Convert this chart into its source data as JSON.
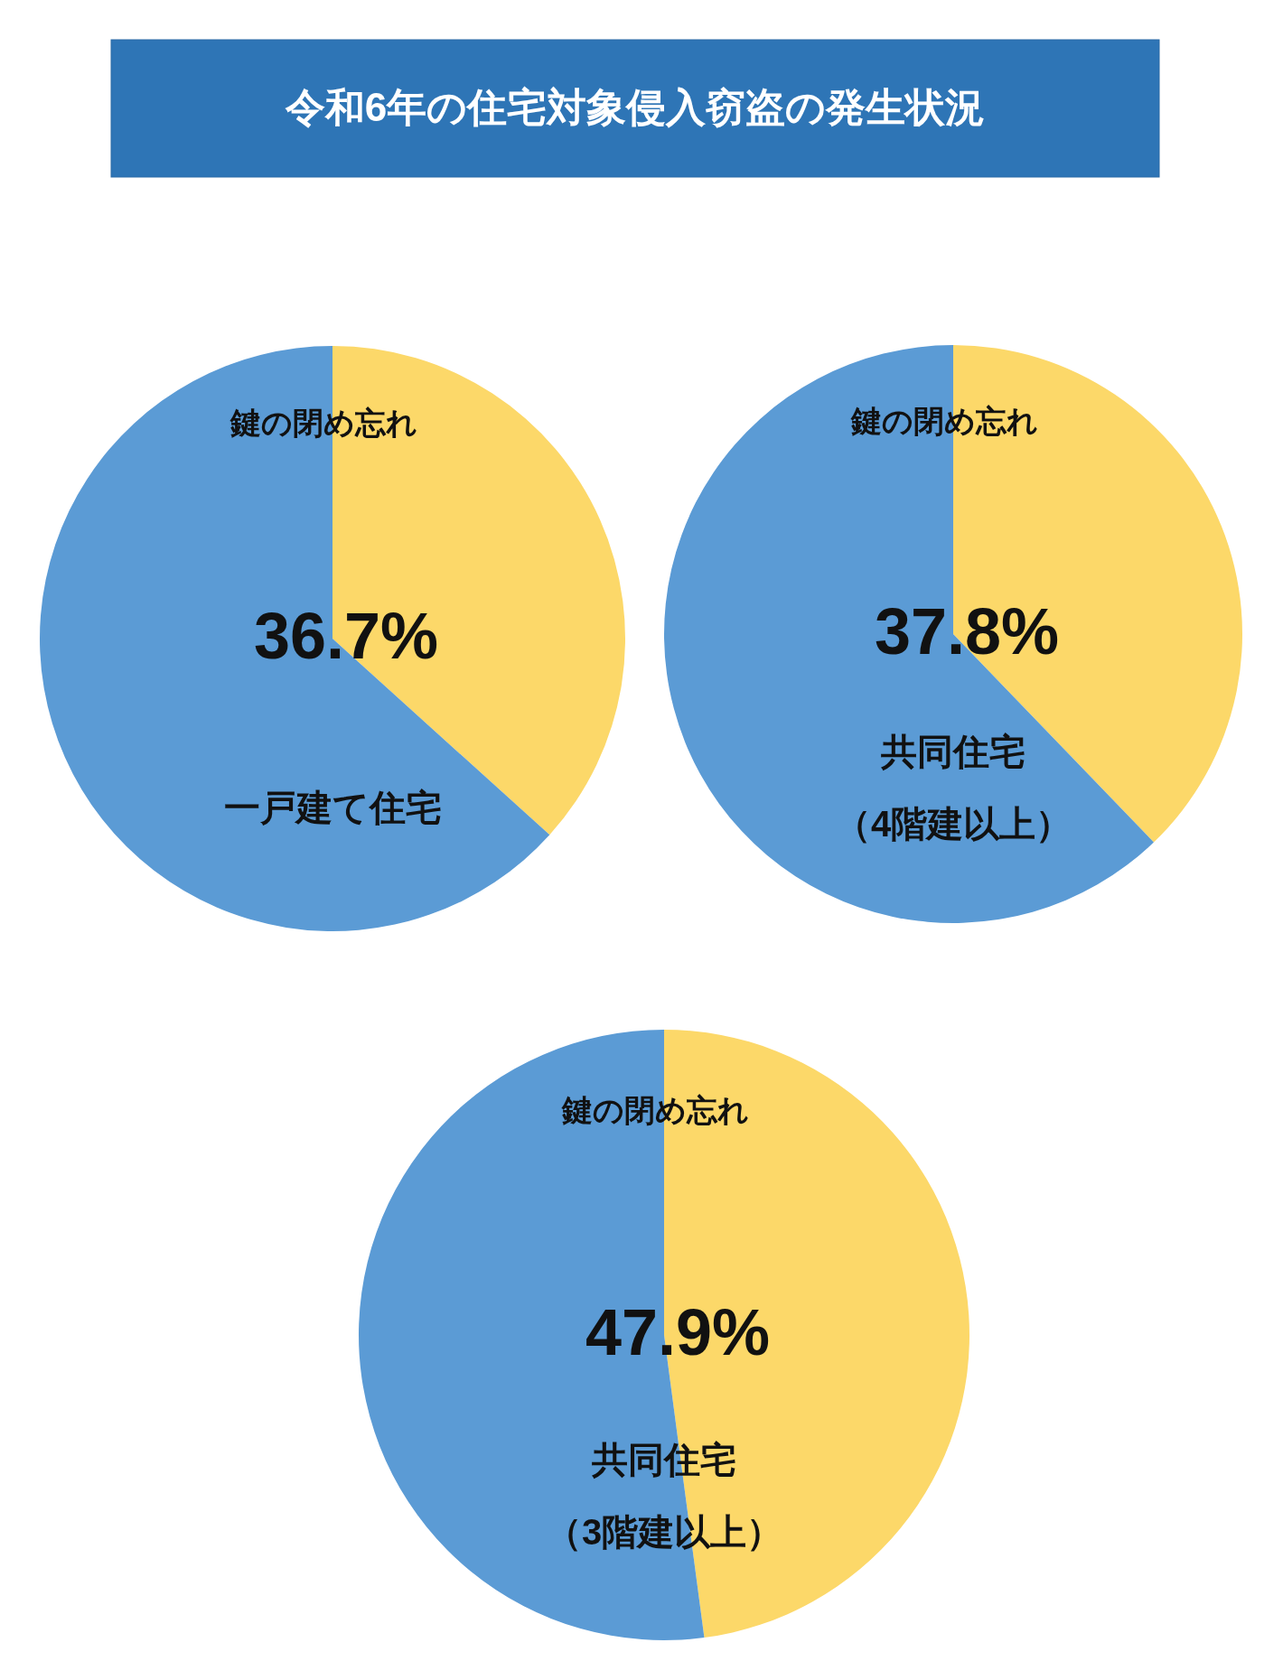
{
  "chart_data": [
    {
      "type": "pie",
      "title": "令和6年の住宅対象侵入窃盗の発生状況",
      "subtitle": "一戸建て住宅",
      "categories": [
        "鍵の閉め忘れ",
        null
      ],
      "values": [
        36.7,
        63.3
      ],
      "colors": [
        "#fcd869",
        "#5b9bd5"
      ],
      "value_labels": [
        "36.7%",
        null
      ]
    },
    {
      "type": "pie",
      "subtitle": "共同住宅（4階建以上）",
      "categories": [
        "鍵の閉め忘れ",
        null
      ],
      "values": [
        37.8,
        62.2
      ],
      "colors": [
        "#fcd869",
        "#5b9bd5"
      ],
      "value_labels": [
        "37.8%",
        null
      ]
    },
    {
      "type": "pie",
      "subtitle": "共同住宅（3階建以上）",
      "categories": [
        "鍵の閉め忘れ",
        null
      ],
      "values": [
        47.9,
        52.1
      ],
      "colors": [
        "#fcd869",
        "#5b9bd5"
      ],
      "value_labels": [
        "47.9%",
        null
      ]
    }
  ]
}
